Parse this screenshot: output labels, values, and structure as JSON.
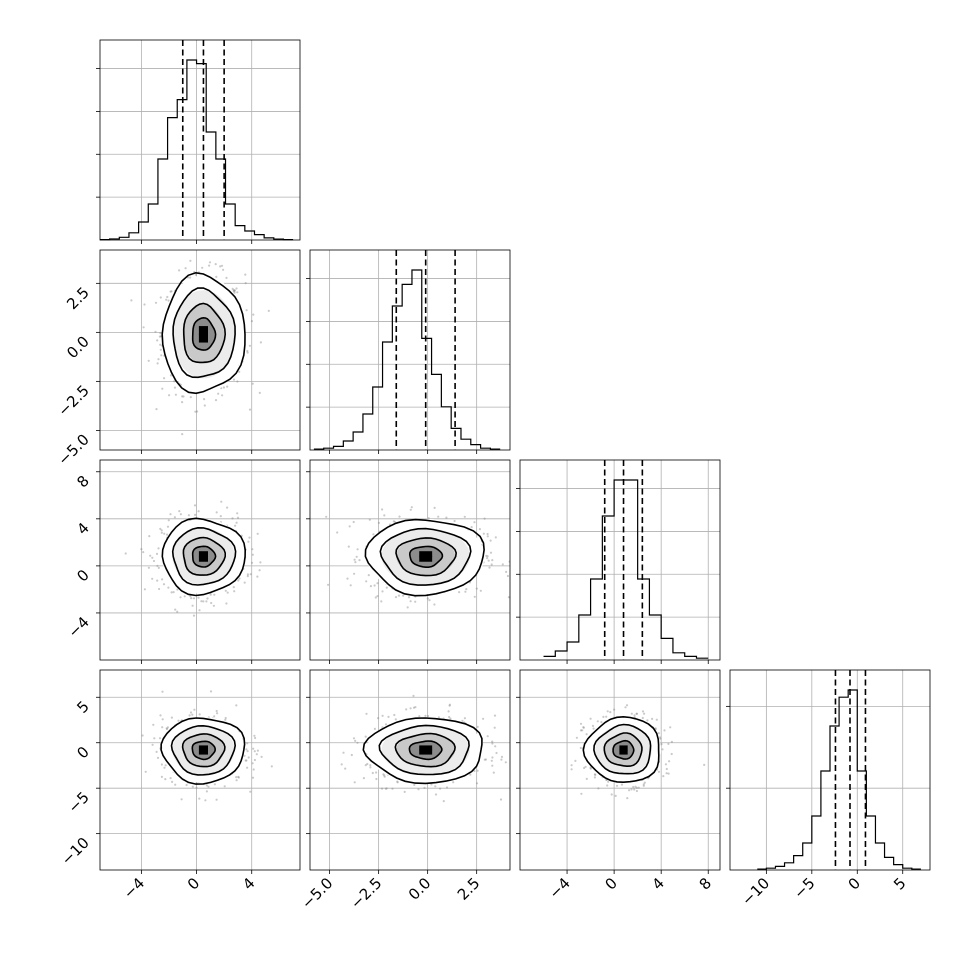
{
  "chart_data": {
    "type": "corner",
    "parameters": [
      {
        "range": [
          -7,
          7.5
        ],
        "ticks": [
          -4,
          0,
          4
        ],
        "tick_labels": [
          "−4",
          "0",
          "4"
        ],
        "center": 0.5,
        "sigma": 1.5,
        "quantiles": [
          -1.0,
          0.5,
          2.0
        ],
        "hist_edges": [
          -7,
          -6.3,
          -5.6,
          -4.9,
          -4.2,
          -3.5,
          -2.8,
          -2.1,
          -1.4,
          -0.7,
          0,
          0.7,
          1.4,
          2.1,
          2.8,
          3.5,
          4.2,
          4.9,
          5.6,
          6.3,
          7.0
        ],
        "hist_values": [
          0.002,
          0.006,
          0.015,
          0.04,
          0.1,
          0.2,
          0.45,
          0.68,
          0.78,
          1.0,
          0.98,
          0.6,
          0.45,
          0.2,
          0.08,
          0.05,
          0.03,
          0.012,
          0.005,
          0.002
        ],
        "hist_yticks": 4
      },
      {
        "range": [
          -6,
          4.2
        ],
        "ticks": [
          -5,
          -2.5,
          0,
          2.5
        ],
        "tick_labels": [
          "−5.0",
          "−2.5",
          "0.0",
          "2.5"
        ],
        "center": -0.1,
        "sigma": 1.5,
        "quantiles": [
          -1.6,
          -0.1,
          1.4
        ],
        "hist_edges": [
          -5.8,
          -5.3,
          -4.8,
          -4.3,
          -3.8,
          -3.3,
          -2.8,
          -2.3,
          -1.8,
          -1.3,
          -0.8,
          -0.3,
          0.2,
          0.7,
          1.2,
          1.7,
          2.2,
          2.7,
          3.2,
          3.7
        ],
        "hist_values": [
          0.005,
          0.01,
          0.02,
          0.05,
          0.1,
          0.2,
          0.35,
          0.6,
          0.8,
          0.92,
          1.0,
          0.62,
          0.42,
          0.24,
          0.12,
          0.06,
          0.03,
          0.01,
          0.005
        ],
        "hist_yticks": 4
      },
      {
        "range": [
          -8,
          9
        ],
        "ticks": [
          -4,
          0,
          4,
          8
        ],
        "tick_labels": [
          "−4",
          "0",
          "4",
          "8"
        ],
        "center": 0.8,
        "sigma": 1.6,
        "quantiles": [
          -0.8,
          0.8,
          2.4
        ],
        "hist_edges": [
          -6,
          -5,
          -4,
          -3,
          -2,
          -1,
          0,
          1,
          2,
          3,
          4,
          5,
          6,
          7,
          8
        ],
        "hist_values": [
          0.02,
          0.05,
          0.1,
          0.25,
          0.45,
          0.8,
          1.0,
          1.0,
          0.45,
          0.25,
          0.12,
          0.04,
          0.02,
          0.01
        ],
        "hist_yticks": 4
      },
      {
        "range": [
          -14,
          8
        ],
        "ticks": [
          -10,
          -5,
          0,
          5
        ],
        "tick_labels": [
          "−10",
          "−5",
          "0",
          "5"
        ],
        "center": -0.8,
        "sigma": 1.8,
        "quantiles": [
          -2.4,
          -0.8,
          0.9
        ],
        "hist_edges": [
          -11,
          -10,
          -9,
          -8,
          -7,
          -6,
          -5,
          -4,
          -3,
          -2,
          -1,
          0,
          1,
          2,
          3,
          4,
          5,
          6,
          7
        ],
        "hist_values": [
          0.005,
          0.01,
          0.02,
          0.04,
          0.08,
          0.15,
          0.3,
          0.55,
          0.8,
          0.96,
          1.0,
          0.55,
          0.3,
          0.15,
          0.07,
          0.03,
          0.01,
          0.005
        ],
        "hist_yticks": 2
      }
    ],
    "scatter_samples": 650,
    "contour_levels_sigma": [
      0.55,
      1.0,
      1.5,
      2.0
    ]
  }
}
